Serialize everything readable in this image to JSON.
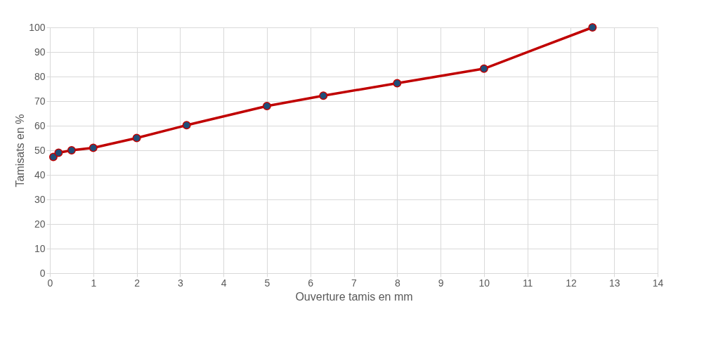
{
  "chart_data": {
    "type": "line",
    "xlabel": "Ouverture tamis en mm",
    "ylabel": "Tamisats en %",
    "x": [
      0.08,
      0.2,
      0.5,
      1,
      2,
      3.15,
      5,
      6.3,
      8,
      10,
      12.5
    ],
    "series": [
      {
        "color": "#c00000",
        "values": [
          47.3,
          49,
          50,
          51,
          55,
          60.2,
          68,
          72.2,
          77.3,
          83.2,
          100
        ]
      }
    ],
    "xlim": [
      0,
      14
    ],
    "xticks": [
      0,
      1,
      2,
      3,
      4,
      5,
      6,
      7,
      8,
      9,
      10,
      11,
      12,
      13,
      14
    ],
    "ylim": [
      0,
      100
    ],
    "yticks": [
      0,
      10,
      20,
      30,
      40,
      50,
      60,
      70,
      80,
      90,
      100
    ],
    "grid": true,
    "marker": "circle",
    "line_style": "solid"
  }
}
